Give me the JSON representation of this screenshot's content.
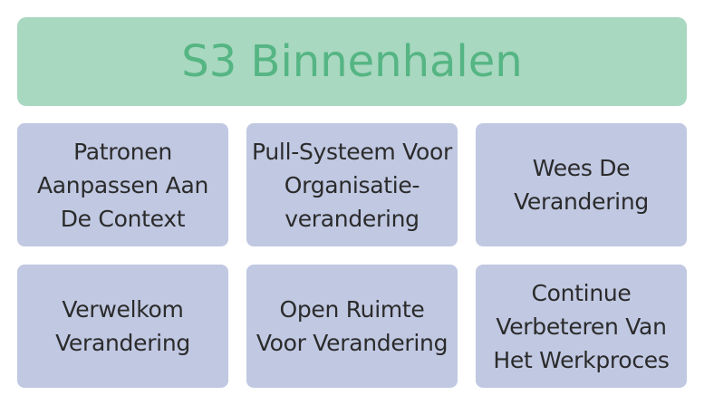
{
  "header": {
    "title": "S3 Binnenhalen"
  },
  "cards": [
    {
      "line1": "Patronen",
      "line2": "Aanpassen Aan",
      "line3": "De Context"
    },
    {
      "line1": "Pull-Systeem Voor",
      "line2": "Organisatie-",
      "line3": "verandering"
    },
    {
      "line1": "Wees De",
      "line2": "Verandering"
    },
    {
      "line1": "Verwelkom",
      "line2": "Verandering"
    },
    {
      "line1": "Open Ruimte",
      "line2": "Voor Verandering"
    },
    {
      "line1": "Continue",
      "line2": "Verbeteren Van",
      "line3": "Het Werkproces"
    }
  ],
  "colors": {
    "header_bg": "#a8d8c0",
    "header_text": "#55b583",
    "card_bg": "#c0c8e2",
    "card_text": "#2b2b2b"
  }
}
